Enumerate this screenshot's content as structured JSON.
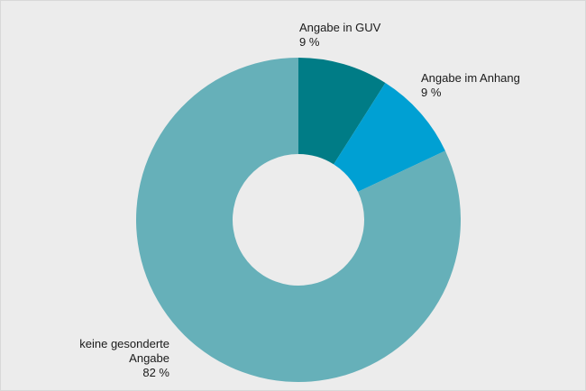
{
  "chart_data": {
    "type": "donut",
    "categories": [
      "Angabe in GUV",
      "Angabe im Anhang",
      "keine gesonderte Angabe"
    ],
    "values": [
      9,
      9,
      82
    ],
    "value_labels": [
      "9 %",
      "9 %",
      "82 %"
    ],
    "colors": [
      "#007c86",
      "#00a0d3",
      "#66b0b9"
    ]
  }
}
